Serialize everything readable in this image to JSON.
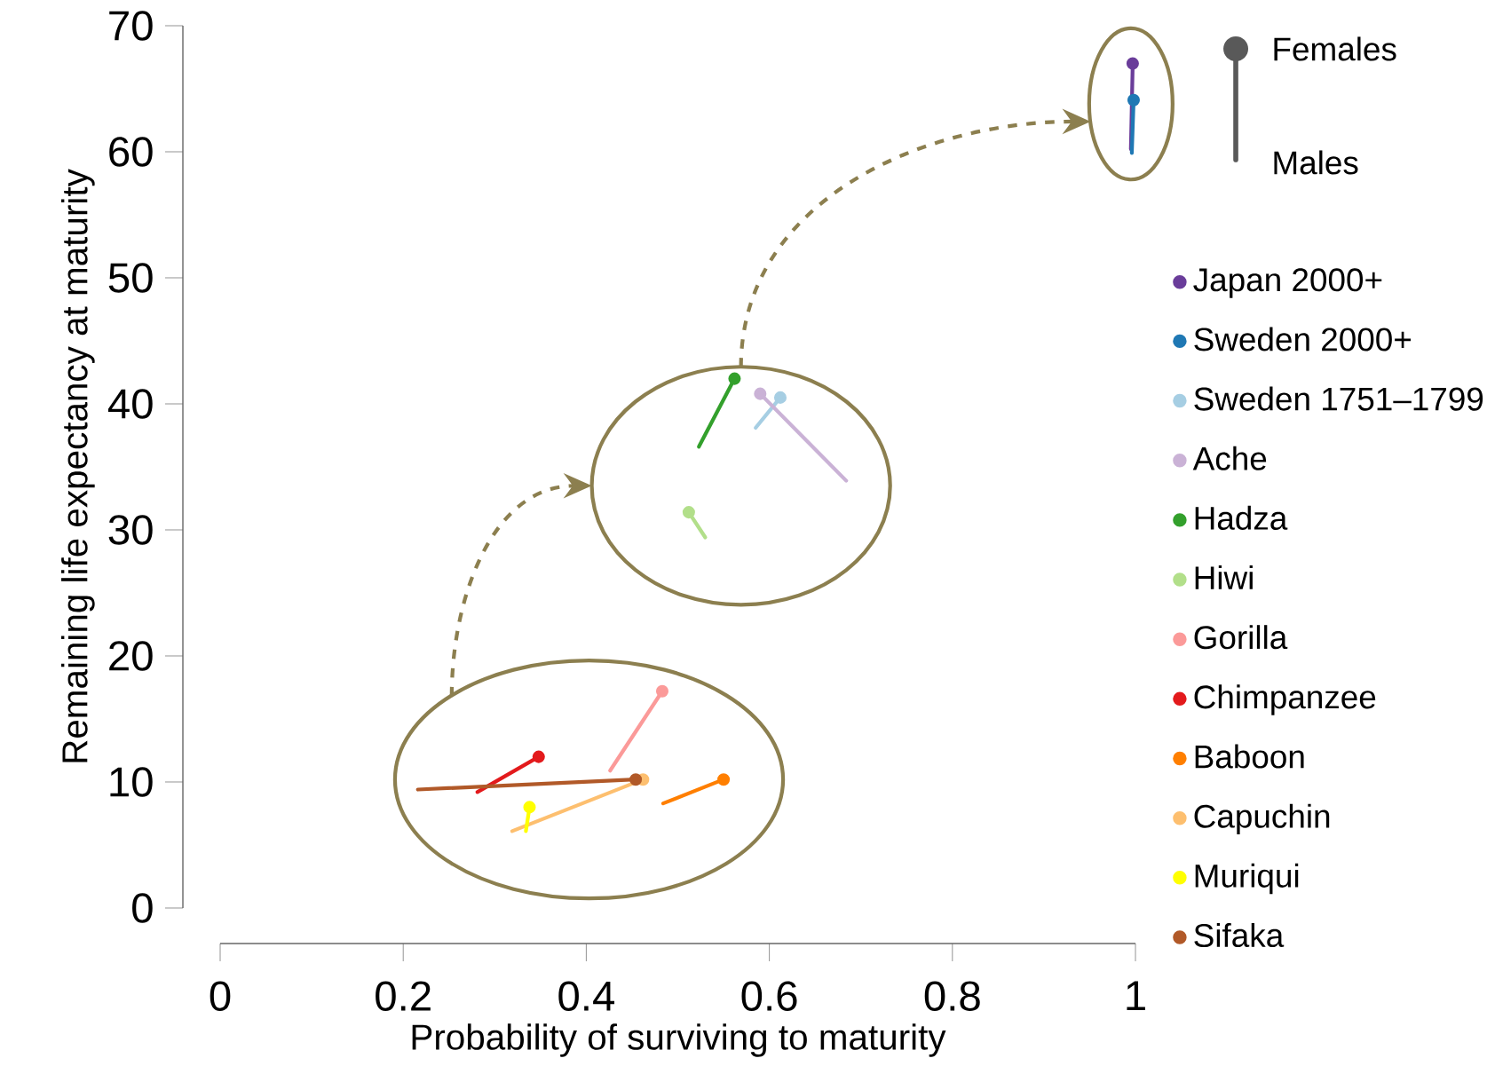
{
  "chart_data": {
    "type": "line",
    "xlabel": "Probability of surviving to maturity",
    "ylabel": "Remaining life expectancy at maturity",
    "xlim": [
      0,
      1
    ],
    "ylim": [
      0,
      70
    ],
    "xticks": [
      0,
      0.2,
      0.4,
      0.6,
      0.8,
      1
    ],
    "yticks": [
      0,
      10,
      20,
      30,
      40,
      50,
      60,
      70
    ],
    "grid": false,
    "legend": "right",
    "marker": "circle",
    "line_style": "solid",
    "annotations": [
      "Females",
      "Males"
    ],
    "series": [
      {
        "name": "Japan 2000+",
        "color": "#6a3d9a",
        "x": [
          0.997,
          0.995
        ],
        "values": [
          67,
          60.2
        ]
      },
      {
        "name": "Sweden 2000+",
        "color": "#1f78b4",
        "x": [
          0.998,
          0.996
        ],
        "values": [
          64.1,
          59.9
        ]
      },
      {
        "name": "Sweden 1751–1799",
        "color": "#a6cee3",
        "x": [
          0.612,
          0.585
        ],
        "values": [
          40.5,
          38.1
        ]
      },
      {
        "name": "Ache",
        "color": "#cab2d6",
        "x": [
          0.59,
          0.684
        ],
        "values": [
          40.8,
          33.9
        ]
      },
      {
        "name": "Hadza",
        "color": "#33a02c",
        "x": [
          0.562,
          0.523
        ],
        "values": [
          42,
          36.6
        ]
      },
      {
        "name": "Hiwi",
        "color": "#b2df8a",
        "x": [
          0.512,
          0.53
        ],
        "values": [
          31.4,
          29.4
        ]
      },
      {
        "name": "Gorilla",
        "color": "#fb9a99",
        "x": [
          0.483,
          0.426
        ],
        "values": [
          17.2,
          10.9
        ]
      },
      {
        "name": "Chimpanzee",
        "color": "#e31a1c",
        "x": [
          0.348,
          0.281
        ],
        "values": [
          12,
          9.2
        ]
      },
      {
        "name": "Baboon",
        "color": "#ff7f00",
        "x": [
          0.55,
          0.484
        ],
        "values": [
          10.2,
          8.3
        ]
      },
      {
        "name": "Capuchin",
        "color": "#fdbf6f",
        "x": [
          0.462,
          0.319
        ],
        "values": [
          10.2,
          6.1
        ]
      },
      {
        "name": "Muriqui",
        "color": "#ffff00",
        "x": [
          0.338,
          0.334
        ],
        "values": [
          8,
          6.1
        ]
      },
      {
        "name": "Sifaka",
        "color": "#b15928",
        "x": [
          0.454,
          0.216
        ],
        "values": [
          10.2,
          9.4
        ]
      }
    ]
  }
}
